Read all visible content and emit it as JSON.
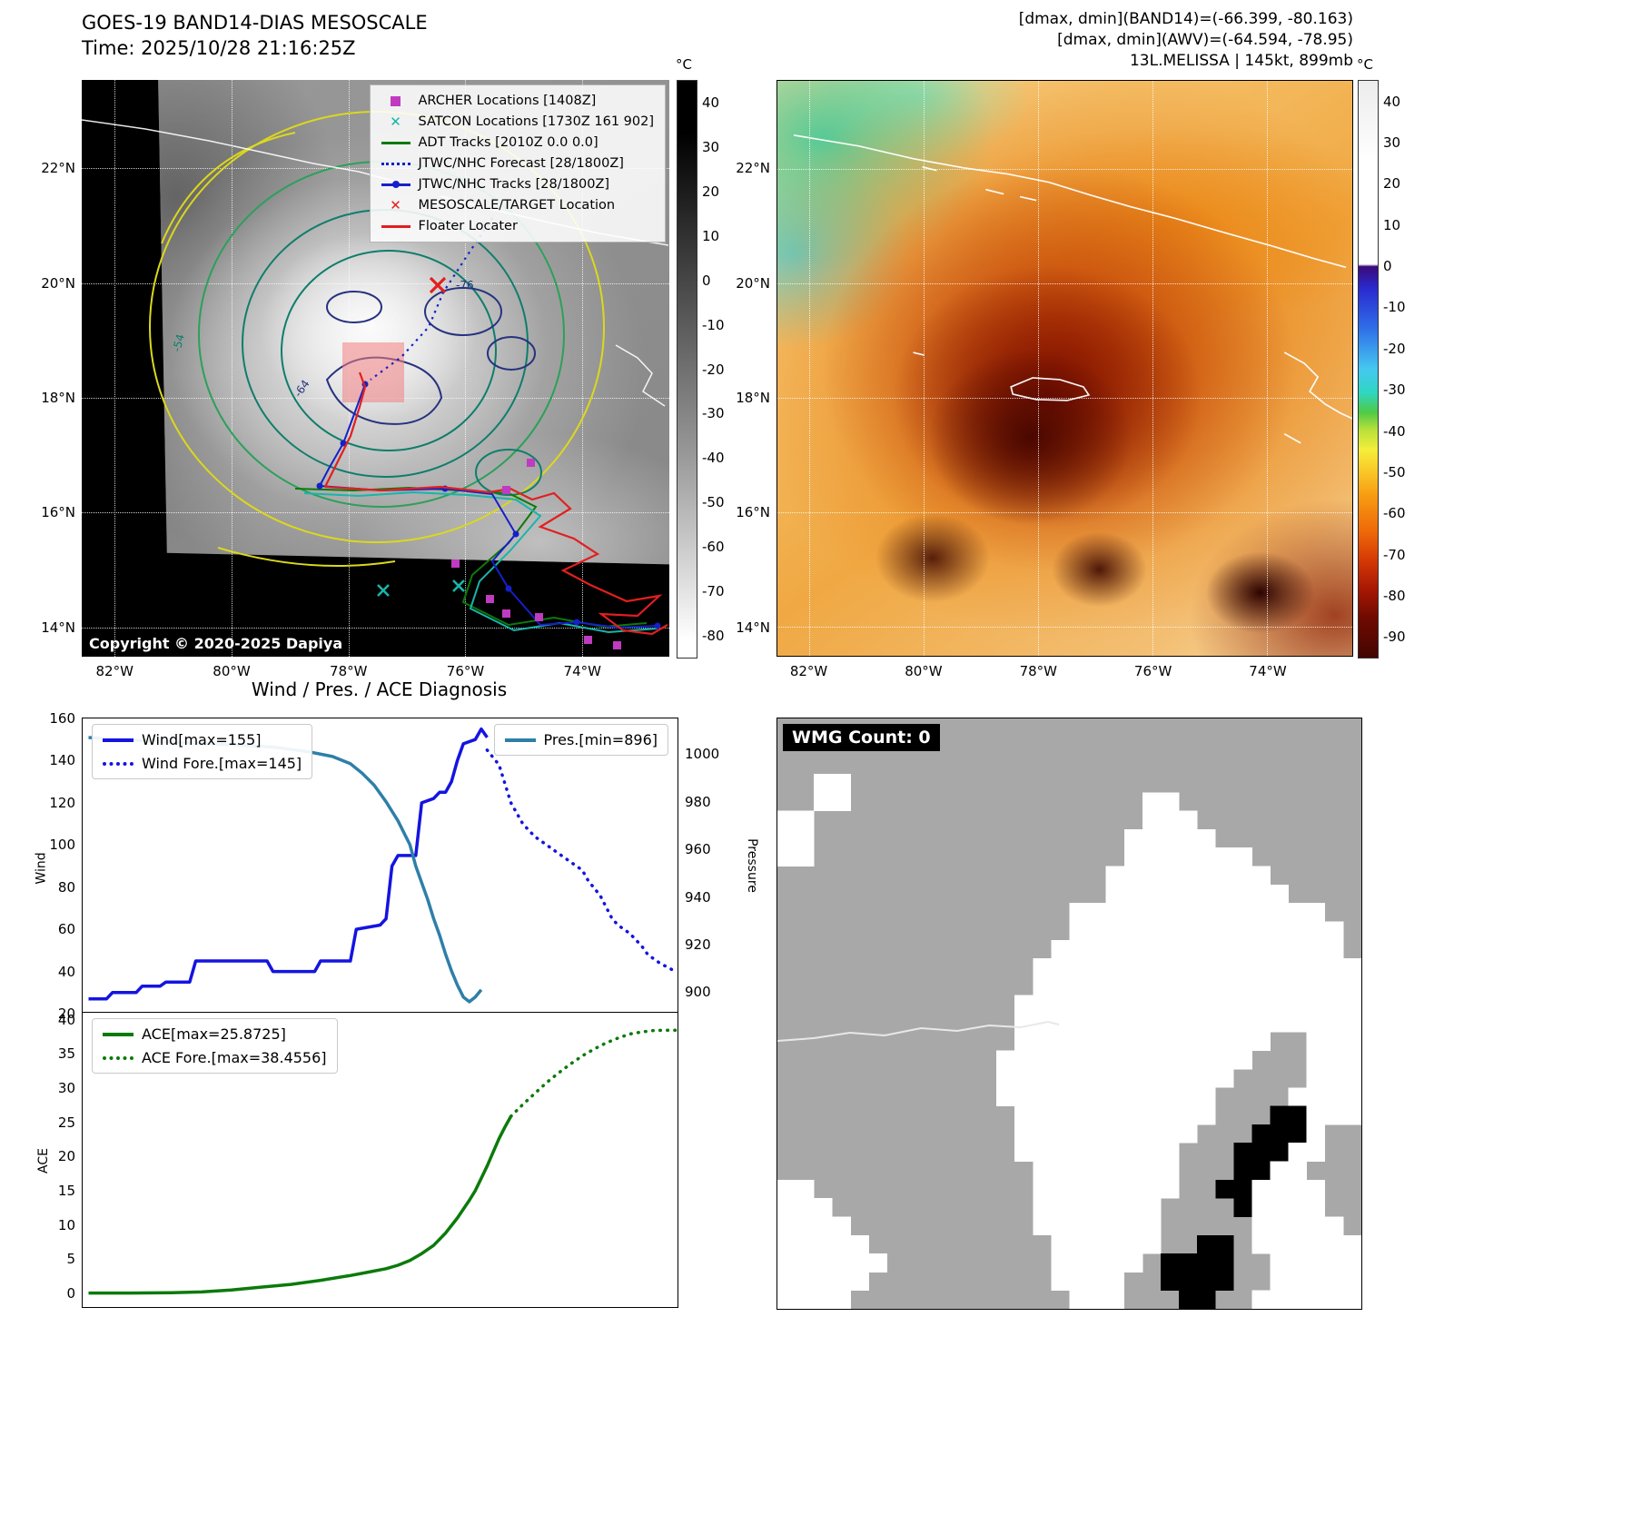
{
  "panel_band14": {
    "title_line1": "GOES-19 BAND14-DIAS MESOSCALE",
    "title_line2": "Time: 2025/10/28 21:16:25Z",
    "copyright": "Copyright © 2020-2025 Dapiya",
    "legend": [
      {
        "label": "ARCHER Locations [1408Z]",
        "marker": "square",
        "color": "#c03bc0"
      },
      {
        "label": "SATCON Locations [1730Z 161 902]",
        "marker": "x",
        "color": "#18b5a8"
      },
      {
        "label": "ADT Tracks [2010Z 0.0 0.0]",
        "marker": "line",
        "color": "#0b7a0b"
      },
      {
        "label": "JTWC/NHC Forecast [28/1800Z]",
        "marker": "dotted",
        "color": "#1520c9"
      },
      {
        "label": "JTWC/NHC Tracks [28/1800Z]",
        "marker": "line-dot",
        "color": "#1520c9"
      },
      {
        "label": "MESOSCALE/TARGET Location",
        "marker": "x",
        "color": "#e21f1f"
      },
      {
        "label": "Floater Locater",
        "marker": "line",
        "color": "#e21f1f"
      }
    ],
    "lat_labels": [
      "22°N",
      "20°N",
      "18°N",
      "16°N",
      "14°N"
    ],
    "lon_labels": [
      "82°W",
      "80°W",
      "78°W",
      "76°W",
      "74°W"
    ],
    "colorbar": {
      "unit": "°C",
      "range": [
        45,
        -85
      ],
      "ticks": [
        40,
        30,
        20,
        10,
        0,
        -10,
        -20,
        -30,
        -40,
        -50,
        -60,
        -70,
        -80
      ]
    },
    "contour_labels": [
      "-54",
      "-64",
      "-76"
    ]
  },
  "panel_awv": {
    "header_line1": "[dmax, dmin](BAND14)=(-66.399, -80.163)",
    "header_line2": "[dmax, dmin](AWV)=(-64.594, -78.95)",
    "header_line3": "13L.MELISSA | 145kt, 899mb",
    "lat_labels": [
      "22°N",
      "20°N",
      "18°N",
      "16°N",
      "14°N"
    ],
    "lon_labels": [
      "82°W",
      "80°W",
      "78°W",
      "76°W",
      "74°W"
    ],
    "colorbar": {
      "unit": "°C",
      "range": [
        45,
        -95
      ],
      "ticks": [
        40,
        30,
        20,
        10,
        0,
        -10,
        -20,
        -30,
        -40,
        -50,
        -60,
        -70,
        -80,
        -90
      ]
    }
  },
  "chart_data": [
    {
      "type": "line",
      "title": "Wind / Pres. / ACE Diagnosis",
      "x_axis": "time (no tick labels shown)",
      "x_range": [
        0,
        100
      ],
      "ylabel_left": "Wind",
      "ylabel_right": "Pressure",
      "ylim_left": [
        20,
        160
      ],
      "ylim_right": [
        891,
        1015
      ],
      "yticks_left": [
        160,
        140,
        120,
        100,
        80,
        60,
        40,
        20
      ],
      "yticks_right": [
        1000,
        980,
        960,
        940,
        920,
        900
      ],
      "legend_left": [
        "Wind[max=155]",
        "Wind Fore.[max=145]"
      ],
      "legend_right": [
        "Pres.[min=896]"
      ],
      "series": [
        {
          "name": "Wind[max=155]",
          "data_name": "wind-line",
          "axis": "left",
          "style": "solid",
          "color": "#1414e0",
          "width": 3.5,
          "points": [
            [
              1,
              27
            ],
            [
              4,
              27
            ],
            [
              5,
              30
            ],
            [
              9,
              30
            ],
            [
              10,
              33
            ],
            [
              13,
              33
            ],
            [
              14,
              35
            ],
            [
              18,
              35
            ],
            [
              19,
              45
            ],
            [
              31,
              45
            ],
            [
              32,
              40
            ],
            [
              39,
              40
            ],
            [
              40,
              45
            ],
            [
              45,
              45
            ],
            [
              46,
              60
            ],
            [
              50,
              62
            ],
            [
              51,
              65
            ],
            [
              52,
              90
            ],
            [
              53,
              95
            ],
            [
              56,
              95
            ],
            [
              57,
              120
            ],
            [
              59,
              122
            ],
            [
              60,
              125
            ],
            [
              61,
              125
            ],
            [
              62,
              130
            ],
            [
              63,
              140
            ],
            [
              64,
              148
            ],
            [
              66,
              150
            ],
            [
              67,
              155
            ],
            [
              68,
              151
            ]
          ]
        },
        {
          "name": "Wind Fore.[max=145]",
          "data_name": "wind-forecast-line",
          "axis": "left",
          "style": "dotted",
          "color": "#1414e0",
          "width": 3.5,
          "points": [
            [
              68,
              145
            ],
            [
              70,
              138
            ],
            [
              72,
              120
            ],
            [
              74,
              110
            ],
            [
              76,
              104
            ],
            [
              78,
              100
            ],
            [
              80,
              96
            ],
            [
              82,
              92
            ],
            [
              84,
              88
            ],
            [
              85,
              83
            ],
            [
              87,
              76
            ],
            [
              89,
              65
            ],
            [
              90,
              62
            ],
            [
              92,
              58
            ],
            [
              94,
              52
            ],
            [
              95,
              48
            ],
            [
              97,
              44
            ],
            [
              99,
              41
            ],
            [
              100,
              40
            ]
          ]
        },
        {
          "name": "Pres.[min=896]",
          "data_name": "pressure-line",
          "axis": "right",
          "style": "solid",
          "color": "#2e7fa8",
          "width": 3.5,
          "points": [
            [
              1,
              1007
            ],
            [
              8,
              1006
            ],
            [
              16,
              1005
            ],
            [
              24,
              1004
            ],
            [
              32,
              1003
            ],
            [
              38,
              1001
            ],
            [
              42,
              999
            ],
            [
              45,
              996
            ],
            [
              47,
              992
            ],
            [
              49,
              987
            ],
            [
              51,
              980
            ],
            [
              53,
              972
            ],
            [
              55,
              962
            ],
            [
              56,
              953
            ],
            [
              57,
              946
            ],
            [
              58,
              939
            ],
            [
              59,
              931
            ],
            [
              60,
              924
            ],
            [
              61,
              916
            ],
            [
              62,
              909
            ],
            [
              63,
              903
            ],
            [
              64,
              898
            ],
            [
              65,
              896
            ],
            [
              66,
              898
            ],
            [
              67,
              901
            ]
          ]
        }
      ]
    },
    {
      "type": "line",
      "title": "",
      "x_axis": "time (no tick labels shown)",
      "x_range": [
        0,
        100
      ],
      "ylabel": "ACE",
      "ylim": [
        -2,
        41
      ],
      "yticks": [
        40,
        35,
        30,
        25,
        20,
        15,
        10,
        5,
        0
      ],
      "legend": [
        "ACE[max=25.8725]",
        "ACE Fore.[max=38.4556]"
      ],
      "series": [
        {
          "name": "ACE[max=25.8725]",
          "data_name": "ace-line",
          "axis": "left",
          "style": "solid",
          "color": "#0b7a0b",
          "width": 3.5,
          "points": [
            [
              1,
              0.05
            ],
            [
              8,
              0.05
            ],
            [
              15,
              0.1
            ],
            [
              20,
              0.2
            ],
            [
              25,
              0.5
            ],
            [
              30,
              0.9
            ],
            [
              35,
              1.3
            ],
            [
              40,
              1.9
            ],
            [
              45,
              2.6
            ],
            [
              48,
              3.1
            ],
            [
              51,
              3.6
            ],
            [
              53,
              4.1
            ],
            [
              55,
              4.8
            ],
            [
              57,
              5.8
            ],
            [
              59,
              7
            ],
            [
              61,
              8.8
            ],
            [
              63,
              11
            ],
            [
              65,
              13.6
            ],
            [
              66,
              15
            ],
            [
              67,
              16.8
            ],
            [
              68,
              18.6
            ],
            [
              69,
              20.6
            ],
            [
              70,
              22.6
            ],
            [
              71,
              24.3
            ],
            [
              72,
              25.8725
            ]
          ]
        },
        {
          "name": "ACE Fore.[max=38.4556]",
          "data_name": "ace-forecast-line",
          "axis": "left",
          "style": "dotted",
          "color": "#0b7a0b",
          "width": 3.5,
          "points": [
            [
              72,
              25.8725
            ],
            [
              74,
              27.6
            ],
            [
              76,
              29.2
            ],
            [
              78,
              30.8
            ],
            [
              80,
              32.2
            ],
            [
              82,
              33.5
            ],
            [
              84,
              34.7
            ],
            [
              86,
              35.7
            ],
            [
              88,
              36.6
            ],
            [
              90,
              37.3
            ],
            [
              92,
              37.9
            ],
            [
              94,
              38.2
            ],
            [
              96,
              38.4
            ],
            [
              98,
              38.45
            ],
            [
              100,
              38.4556
            ]
          ]
        }
      ]
    }
  ],
  "wmg": {
    "count_label": "WMG Count: 0",
    "colors": {
      "background_gray": "#a8a8a8",
      "cloud_white": "#ffffff",
      "cold_black": "#000000"
    },
    "grid": [
      "GGGGGGGGGGGGGGGGGGGGGGGGGGGGGGGG",
      "GGGGGGGGGGGGGGGGGGGGGGGGGGGGGGGG",
      "GGGGGGGGGGGGGGGGGGGGGGGGGGGGGGGG",
      "GGWWGGGGGGGGGGGGGGGGGGGGGGGGGGGG",
      "GGWWGGGGGGGGGGGGGGGGWWGGGG GGGGG",
      "WWGGGGGGGGGGGGGGGGGGWWWGGGGGGGGG",
      "WWGGGGGGGGGGGGGGGGGWWWWWGGGGGGGG",
      "WWGGGGGGGGGGGGGGGGGWWWWWWWGGGGGG",
      "GGGGGGGGGGGGGGGGGGWWWWWWWWWGGGGG",
      "GGGGGGGGGGGGGGGGGGWWWWWWWWWWGGGG",
      "GGGGGGGGGGGGGGGGWWWWWWWWWWWWWWGG",
      "GGGGGGGGGGGGGGGGWWWWWWWWWWWWWWWG",
      "GGGGGGGGGGGGGGGWWWWWWWWWWWWWWWWG",
      "GGGGGGGGGGGGGGWWWWWWWWWWWWWWWWWW",
      "GGGGGGGGGGGGGGWWWWWWWWWWWWWWWWWW",
      "GGGGGGGGGGGGGWWWWWWWWWWWWWWWWWWW",
      "GGGGGGGGGGGGGWWWWWWWWWWWWWWWWWWW",
      "GGGGGGGGGGGGGWWWWWWWWWWWWWWGGWWW",
      "GGGGGGGGGGGGWWWWWWWWWWWWWWGGGWWW",
      "GGGGGGGGGGGGWWWWWWWWWWWWWGGGGWWW",
      "GGGGGGGGGGGGWWWWWWWWWWWWGGGGWWWW",
      "GGGGGGGGGGGGGWWWWWWWWWWWGGGBBWWW",
      "GGGGGGGGGGGGGWWWWWWWWWWGGGBBBWGG",
      "GGGGGGGGGGGGGWWWWWWWWWGGGBBBWWGG",
      "GGGGGGGGGGGGGGWWWWWWWWGGGBBWWGGG",
      "WWGGGGGGGGGGGGWWWWWWWWGGBBWWWWGG",
      "WWWGGGGGGGGGGGWWWWWWWGGGGBWWWWGG",
      "WWWWGGGGGGGGGGWWWWWWWGGGGGWWWWWG",
      "WWWWWGGGGGGGGGGWWWWWWGGBBGWWWWWW",
      "WWWWWWGGGGGGGGGWWWWWGBBBBGGWWWWW",
      "WWWWWGGGGGGGGGGWWWWGGBBBBGGWWWWW",
      "WWWWGGGGGGGGGGGGWWWGGGBBGGWWWWWW"
    ]
  }
}
